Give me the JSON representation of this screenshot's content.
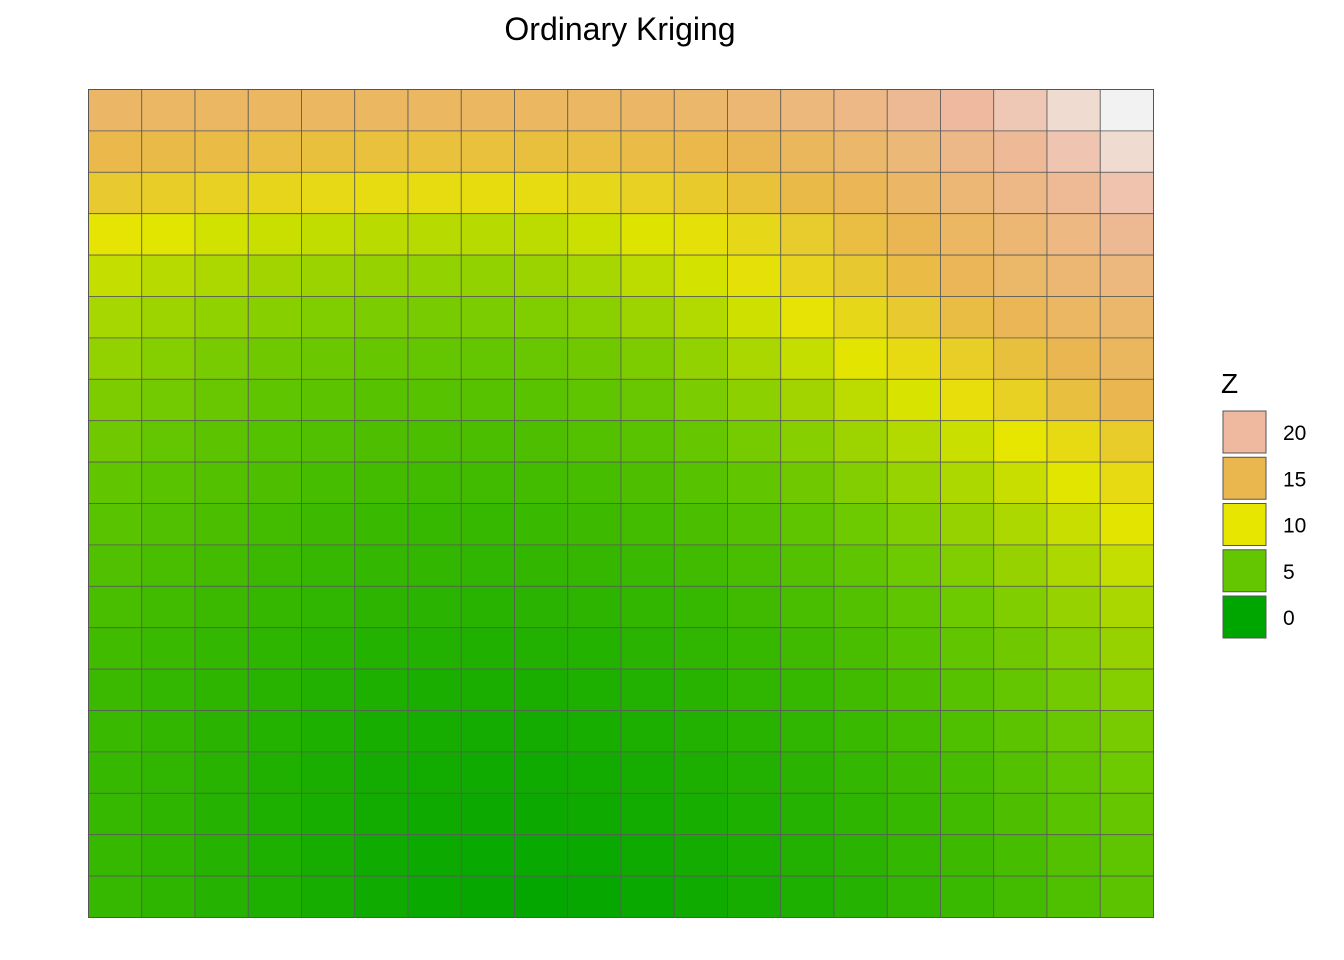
{
  "chart_data": {
    "type": "heatmap",
    "title": "Ordinary Kriging",
    "xlabel": "",
    "ylabel": "",
    "grid": true,
    "legend_position": "right",
    "legend": {
      "title": "Z",
      "entries": [
        {
          "label": "20",
          "value": 20
        },
        {
          "label": "15",
          "value": 15
        },
        {
          "label": "10",
          "value": 10
        },
        {
          "label": "5",
          "value": 5
        },
        {
          "label": "0",
          "value": 0
        }
      ]
    },
    "color_scale": {
      "stops": [
        {
          "value": 0,
          "color": "#00A600"
        },
        {
          "value": 5,
          "color": "#63C600"
        },
        {
          "value": 10,
          "color": "#E6E600"
        },
        {
          "value": 15,
          "color": "#EAB64E"
        },
        {
          "value": 20,
          "color": "#EEB99F"
        },
        {
          "value": 23,
          "color": "#F2F2F2"
        }
      ]
    },
    "rows": 20,
    "cols": 20,
    "z": [
      [
        16.5,
        16.4,
        16.3,
        16.2,
        16.2,
        16.1,
        16.1,
        16.1,
        16.2,
        16.3,
        16.5,
        16.8,
        17.2,
        17.8,
        18.4,
        19.3,
        20.0,
        20.8,
        21.8,
        23.0
      ],
      [
        14.8,
        14.6,
        14.4,
        14.2,
        14.0,
        13.9,
        13.9,
        13.9,
        14.0,
        14.2,
        14.5,
        14.8,
        15.3,
        15.9,
        16.7,
        17.6,
        18.6,
        19.5,
        20.6,
        21.8
      ],
      [
        13.0,
        12.6,
        12.2,
        11.8,
        11.4,
        11.1,
        11.0,
        10.9,
        11.1,
        11.6,
        12.2,
        12.9,
        13.7,
        14.6,
        15.5,
        16.5,
        17.4,
        18.4,
        19.4,
        20.5
      ],
      [
        10.2,
        9.8,
        9.2,
        8.9,
        8.6,
        8.3,
        8.2,
        8.2,
        8.4,
        9.0,
        9.7,
        10.6,
        11.6,
        12.8,
        14.2,
        15.3,
        16.3,
        17.2,
        18.2,
        19.2
      ],
      [
        8.7,
        8.2,
        7.8,
        7.4,
        7.1,
        6.9,
        6.8,
        6.8,
        7.1,
        7.6,
        8.4,
        9.3,
        10.6,
        11.9,
        13.1,
        14.4,
        15.6,
        16.6,
        17.3,
        17.9
      ],
      [
        7.6,
        7.2,
        6.7,
        6.4,
        6.1,
        5.9,
        5.8,
        5.9,
        6.1,
        6.5,
        7.2,
        8.0,
        9.1,
        10.3,
        11.6,
        13.0,
        14.3,
        15.5,
        16.3,
        16.8
      ],
      [
        6.8,
        6.3,
        5.8,
        5.5,
        5.3,
        5.1,
        5.0,
        5.0,
        5.2,
        5.5,
        6.0,
        6.8,
        7.7,
        8.7,
        9.9,
        11.2,
        12.5,
        14.0,
        15.2,
        16.0
      ],
      [
        6.0,
        5.6,
        5.2,
        4.8,
        4.6,
        4.4,
        4.4,
        4.4,
        4.5,
        4.8,
        5.2,
        5.9,
        6.6,
        7.4,
        8.4,
        9.5,
        10.8,
        12.2,
        14.1,
        15.1
      ],
      [
        5.5,
        5.0,
        4.6,
        4.3,
        4.1,
        3.9,
        3.8,
        3.8,
        3.9,
        4.2,
        4.5,
        5.1,
        5.7,
        6.4,
        7.2,
        8.0,
        8.9,
        10.0,
        11.2,
        12.7
      ],
      [
        4.9,
        4.5,
        4.2,
        3.9,
        3.6,
        3.4,
        3.3,
        3.3,
        3.4,
        3.6,
        3.9,
        4.4,
        4.9,
        5.5,
        6.2,
        7.0,
        7.8,
        8.8,
        9.8,
        11.2
      ],
      [
        4.5,
        4.1,
        3.8,
        3.4,
        3.1,
        2.9,
        2.8,
        2.8,
        2.9,
        3.1,
        3.4,
        3.8,
        4.2,
        4.8,
        5.4,
        6.1,
        6.9,
        7.8,
        8.8,
        9.9
      ],
      [
        4.1,
        3.7,
        3.4,
        3.0,
        2.8,
        2.6,
        2.5,
        2.4,
        2.5,
        2.7,
        2.9,
        3.3,
        3.7,
        4.2,
        4.8,
        5.4,
        6.1,
        6.9,
        7.8,
        8.7
      ],
      [
        3.7,
        3.3,
        3.0,
        2.7,
        2.4,
        2.2,
        2.1,
        2.0,
        2.1,
        2.2,
        2.5,
        2.8,
        3.2,
        3.7,
        4.2,
        4.8,
        5.4,
        6.1,
        6.9,
        7.7
      ],
      [
        3.3,
        2.9,
        2.6,
        2.3,
        2.0,
        1.8,
        1.7,
        1.6,
        1.7,
        1.8,
        2.1,
        2.4,
        2.8,
        3.2,
        3.7,
        4.3,
        4.9,
        5.5,
        6.2,
        6.9
      ],
      [
        3.0,
        2.6,
        2.3,
        2.0,
        1.7,
        1.5,
        1.3,
        1.3,
        1.3,
        1.5,
        1.7,
        2.0,
        2.4,
        2.8,
        3.3,
        3.8,
        4.4,
        5.0,
        5.6,
        6.3
      ],
      [
        2.9,
        2.5,
        2.1,
        1.8,
        1.5,
        1.2,
        1.1,
        1.0,
        1.0,
        1.2,
        1.4,
        1.7,
        2.0,
        2.4,
        2.9,
        3.4,
        4.0,
        4.6,
        5.2,
        5.8
      ],
      [
        2.8,
        2.4,
        2.0,
        1.6,
        1.3,
        1.0,
        0.9,
        0.8,
        0.8,
        0.9,
        1.1,
        1.4,
        1.7,
        2.1,
        2.6,
        3.1,
        3.6,
        4.2,
        4.8,
        5.4
      ],
      [
        2.8,
        2.3,
        1.9,
        1.5,
        1.2,
        0.9,
        0.7,
        0.6,
        0.6,
        0.7,
        0.9,
        1.2,
        1.5,
        1.9,
        2.3,
        2.8,
        3.3,
        3.9,
        4.5,
        5.1
      ],
      [
        2.8,
        2.3,
        1.9,
        1.5,
        1.1,
        0.8,
        0.6,
        0.4,
        0.4,
        0.5,
        0.7,
        1.0,
        1.3,
        1.7,
        2.1,
        2.6,
        3.1,
        3.6,
        4.2,
        4.8
      ],
      [
        2.8,
        2.3,
        1.9,
        1.5,
        1.1,
        0.8,
        0.5,
        0.3,
        0.2,
        0.3,
        0.5,
        0.8,
        1.1,
        1.5,
        1.9,
        2.4,
        2.9,
        3.4,
        4.0,
        4.6
      ]
    ]
  }
}
